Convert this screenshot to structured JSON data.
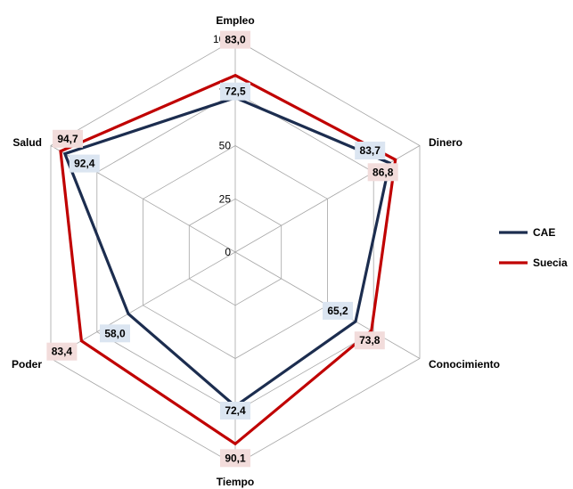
{
  "chart_data": {
    "type": "radar",
    "axes": [
      "Empleo",
      "Dinero",
      "Conocimiento",
      "Tiempo",
      "Poder",
      "Salud"
    ],
    "rmin": 0,
    "rmax": 100,
    "ticks": [
      "0",
      "25",
      "50",
      "75",
      "100"
    ],
    "grid": true,
    "legend_position": "right",
    "series": [
      {
        "name": "CAE",
        "color": "#1c2d4f",
        "values": [
          72.5,
          83.7,
          65.2,
          72.4,
          58.0,
          92.4
        ],
        "labels": [
          "72,5",
          "83,7",
          "65,2",
          "72,4",
          "58,0",
          "92,4"
        ],
        "label_bg": "#dbe5f1"
      },
      {
        "name": "Suecia",
        "color": "#c00000",
        "values": [
          83.0,
          86.8,
          73.8,
          90.1,
          83.4,
          94.7
        ],
        "labels": [
          "83,0",
          "86,8",
          "73,8",
          "90,1",
          "83,4",
          "94,7"
        ],
        "label_bg": "#f2dcdb"
      }
    ]
  }
}
